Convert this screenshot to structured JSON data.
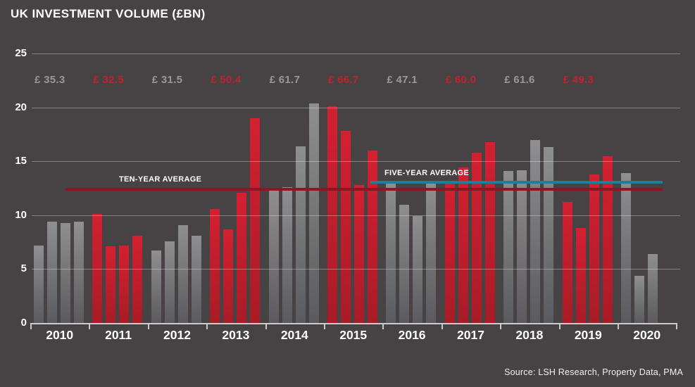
{
  "title": "UK INVESTMENT VOLUME (£BN)",
  "source": "Source: LSH Research, Property Data, PMA",
  "colors": {
    "background": "#474345",
    "bar_gray_top": "#8f8f91",
    "bar_gray_bottom": "#5b5b5f",
    "bar_red_top": "#d42031",
    "bar_red_bottom": "#a81c27",
    "total_label_gray": "#98989a",
    "total_label_red": "#c2212e",
    "axis": "#cbcbcb",
    "grid": "rgba(255,255,255,0.33)",
    "text": "#ffffff",
    "ten_year_line": "#8c1722",
    "five_year_line": "#1b7f9e"
  },
  "chart_data": {
    "type": "bar",
    "title": "UK INVESTMENT VOLUME (£BN)",
    "unit": "£bn per quarter",
    "ylim": [
      0,
      25
    ],
    "yticks": [
      0,
      5,
      10,
      15,
      20,
      25
    ],
    "grid": true,
    "categories": [
      "2010",
      "2011",
      "2012",
      "2013",
      "2014",
      "2015",
      "2016",
      "2017",
      "2018",
      "2019",
      "2020"
    ],
    "years": [
      {
        "year": "2010",
        "color": "gray",
        "total_label": "£ 35.3",
        "quarters": [
          7.2,
          9.4,
          9.3,
          9.4
        ]
      },
      {
        "year": "2011",
        "color": "red",
        "total_label": "£ 32.5",
        "quarters": [
          10.1,
          7.1,
          7.2,
          8.1
        ]
      },
      {
        "year": "2012",
        "color": "gray",
        "total_label": "£ 31.5",
        "quarters": [
          6.7,
          7.6,
          9.1,
          8.1
        ]
      },
      {
        "year": "2013",
        "color": "red",
        "total_label": "£ 50.4",
        "quarters": [
          10.6,
          8.7,
          12.1,
          19.0
        ]
      },
      {
        "year": "2014",
        "color": "gray",
        "total_label": "£ 61.7",
        "quarters": [
          12.3,
          12.6,
          16.4,
          20.4
        ]
      },
      {
        "year": "2015",
        "color": "red",
        "total_label": "£ 66.7",
        "quarters": [
          20.1,
          17.8,
          12.8,
          16.0
        ]
      },
      {
        "year": "2016",
        "color": "gray",
        "total_label": "£ 47.1",
        "quarters": [
          13.1,
          11.0,
          9.9,
          13.1
        ]
      },
      {
        "year": "2017",
        "color": "red",
        "total_label": "£ 60.0",
        "quarters": [
          13.0,
          14.4,
          15.8,
          16.8
        ]
      },
      {
        "year": "2018",
        "color": "gray",
        "total_label": "£ 61.6",
        "quarters": [
          14.1,
          14.2,
          17.0,
          16.3
        ]
      },
      {
        "year": "2019",
        "color": "red",
        "total_label": "£ 49.3",
        "quarters": [
          11.2,
          8.8,
          13.8,
          15.5
        ]
      },
      {
        "year": "2020",
        "color": "gray",
        "total_label": "",
        "quarters": [
          13.9,
          4.4,
          6.4
        ]
      }
    ],
    "reference_lines": [
      {
        "label": "TEN-YEAR AVERAGE",
        "value": 12.4,
        "color_key": "ten_year_line",
        "x0": 93,
        "x1": 941,
        "label_x": 169,
        "label_bottom_gap": 5
      },
      {
        "label": "FIVE-YEAR AVERAGE",
        "value": 13.05,
        "color_key": "five_year_line",
        "x0": 526,
        "x1": 941,
        "label_x": 546,
        "label_bottom_gap": 4
      }
    ],
    "legend": "red years and gray years alternate; annual totals shown above bars"
  }
}
